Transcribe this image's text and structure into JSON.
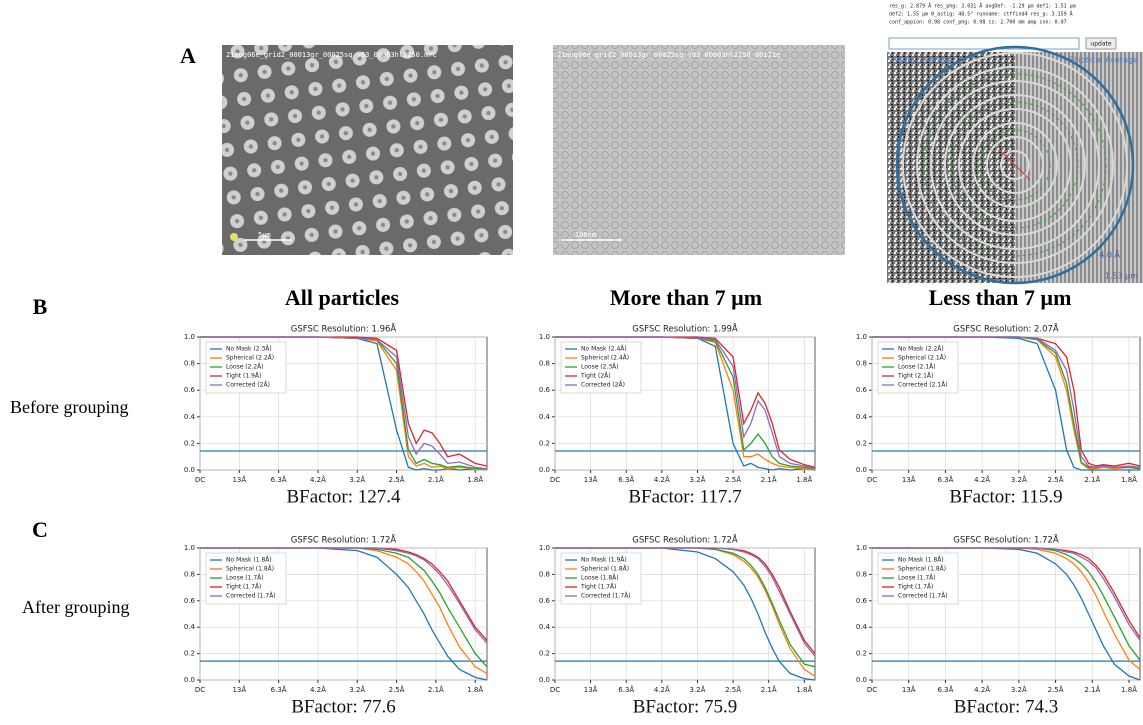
{
  "panel_labels": [
    "A",
    "B",
    "C"
  ],
  "images": [
    {
      "header": "21aug06e_grid2_00013gr_00025sq_v03_00003hl2250.mrc",
      "scale": "5µm"
    },
    {
      "header": "21aug06e_grid2_00013gr_00025sq_v03_00003hl2250_00121e",
      "scale": "100nm"
    },
    {
      "info": [
        "res_g: 2.879 Å  res_phg: 3.031 Å  avgDef: -1.29 µm  def1: 1.51 µm",
        "def2: 1.55 µm  θ_astig: 48.5°  runname: ctffind4  res_g: 3.159 Å",
        "conf_appion: 0.98  conf_phg: 0.98  cs: 2.700 mm  amp con: 0.07"
      ],
      "button": "update",
      "left_label": "Radial Average",
      "right_label": "Elliptical Average",
      "ring_label": "4.0 Å",
      "scale": "1.53 µm"
    }
  ],
  "column_titles": [
    "All particles",
    "More than 7 µm",
    "Less than 7 µm"
  ],
  "row_labels": [
    "Before grouping",
    "After grouping"
  ],
  "chart_data": [
    {
      "type": "line",
      "title": "GSFSC Resolution: 1.96Å",
      "caption": "BFactor: 127.4",
      "grid": true,
      "threshold": 0.143,
      "threshold_color": "#1f77b4",
      "xlim": [
        0,
        7.3
      ],
      "xticks": [
        {
          "value": 0,
          "label": "DC"
        },
        {
          "value": 1,
          "label": "13Å"
        },
        {
          "value": 2,
          "label": "6.3Å"
        },
        {
          "value": 3,
          "label": "4.2Å"
        },
        {
          "value": 4,
          "label": "3.2Å"
        },
        {
          "value": 5,
          "label": "2.5Å"
        },
        {
          "value": 6,
          "label": "2.1Å"
        },
        {
          "value": 7,
          "label": "1.8Å"
        }
      ],
      "ylim": [
        0,
        1
      ],
      "yticks": [
        {
          "value": 0,
          "label": "0.0"
        },
        0.2,
        0.4,
        0.6,
        0.8,
        {
          "value": 1,
          "label": "1.0"
        }
      ],
      "x": [
        0,
        3,
        4,
        4.5,
        5,
        5.3,
        5.5,
        5.7,
        5.9,
        6.1,
        6.3,
        6.6,
        7.0,
        7.3
      ],
      "series": [
        {
          "name": "No Mask (2.3Å)",
          "color": "#1f77b4",
          "values": [
            1,
            1,
            0.99,
            0.95,
            0.3,
            0.02,
            0,
            0.01,
            0,
            0,
            0.01,
            0,
            0.01,
            0
          ]
        },
        {
          "name": "Spherical (2.2Å)",
          "color": "#ff7f0e",
          "values": [
            1,
            1,
            0.99,
            0.97,
            0.75,
            0.1,
            0.03,
            0.05,
            0.02,
            0.03,
            0.01,
            0.02,
            0.01,
            0
          ]
        },
        {
          "name": "Loose (2.2Å)",
          "color": "#2ca02c",
          "values": [
            1,
            1,
            0.99,
            0.98,
            0.8,
            0.15,
            0.05,
            0.08,
            0.05,
            0.04,
            0.02,
            0.03,
            0.01,
            0.01
          ]
        },
        {
          "name": "Tight (1.9Å)",
          "color": "#d62728",
          "values": [
            1,
            1,
            1,
            0.99,
            0.9,
            0.35,
            0.2,
            0.3,
            0.28,
            0.2,
            0.1,
            0.12,
            0.05,
            0.03
          ]
        },
        {
          "name": "Corrected (2Å)",
          "color": "#9467bd",
          "values": [
            1,
            1,
            0.99,
            0.98,
            0.85,
            0.25,
            0.12,
            0.2,
            0.18,
            0.12,
            0.05,
            0.06,
            0.02,
            0.01
          ]
        }
      ]
    },
    {
      "type": "line",
      "title": "GSFSC Resolution: 1.99Å",
      "caption": "BFactor: 117.7",
      "grid": true,
      "threshold": 0.143,
      "threshold_color": "#1f77b4",
      "xlim": [
        0,
        7.3
      ],
      "xticks": [
        {
          "value": 0,
          "label": "DC"
        },
        {
          "value": 1,
          "label": "13Å"
        },
        {
          "value": 2,
          "label": "6.3Å"
        },
        {
          "value": 3,
          "label": "4.2Å"
        },
        {
          "value": 4,
          "label": "3.2Å"
        },
        {
          "value": 5,
          "label": "2.5Å"
        },
        {
          "value": 6,
          "label": "2.1Å"
        },
        {
          "value": 7,
          "label": "1.8Å"
        }
      ],
      "ylim": [
        0,
        1
      ],
      "yticks": [
        {
          "value": 0,
          "label": "0.0"
        },
        0.2,
        0.4,
        0.6,
        0.8,
        {
          "value": 1,
          "label": "1.0"
        }
      ],
      "x": [
        0,
        3,
        4,
        4.5,
        5,
        5.3,
        5.5,
        5.7,
        5.9,
        6.1,
        6.3,
        6.6,
        7.0,
        7.3
      ],
      "series": [
        {
          "name": "No Mask (2.4Å)",
          "color": "#1f77b4",
          "values": [
            1,
            1,
            0.99,
            0.93,
            0.2,
            0.03,
            0.05,
            0.02,
            0.01,
            0,
            0.01,
            0,
            0.01,
            0
          ]
        },
        {
          "name": "Spherical (2.4Å)",
          "color": "#ff7f0e",
          "values": [
            1,
            1,
            0.99,
            0.96,
            0.6,
            0.1,
            0.1,
            0.12,
            0.08,
            0.05,
            0.03,
            0.02,
            0.01,
            0
          ]
        },
        {
          "name": "Loose (2.3Å)",
          "color": "#2ca02c",
          "values": [
            1,
            1,
            0.99,
            0.97,
            0.7,
            0.15,
            0.2,
            0.27,
            0.2,
            0.1,
            0.05,
            0.03,
            0.02,
            0.01
          ]
        },
        {
          "name": "Tight (2Å)",
          "color": "#d62728",
          "values": [
            1,
            1,
            1,
            0.99,
            0.85,
            0.35,
            0.45,
            0.58,
            0.5,
            0.35,
            0.15,
            0.08,
            0.04,
            0.02
          ]
        },
        {
          "name": "Corrected (2Å)",
          "color": "#9467bd",
          "values": [
            1,
            1,
            0.99,
            0.98,
            0.78,
            0.25,
            0.35,
            0.52,
            0.45,
            0.28,
            0.1,
            0.05,
            0.03,
            0.01
          ]
        }
      ]
    },
    {
      "type": "line",
      "title": "GSFSC Resolution: 2.07Å",
      "caption": "BFactor: 115.9",
      "grid": true,
      "threshold": 0.143,
      "threshold_color": "#1f77b4",
      "xlim": [
        0,
        7.3
      ],
      "xticks": [
        {
          "value": 0,
          "label": "DC"
        },
        {
          "value": 1,
          "label": "13Å"
        },
        {
          "value": 2,
          "label": "6.3Å"
        },
        {
          "value": 3,
          "label": "4.2Å"
        },
        {
          "value": 4,
          "label": "3.2Å"
        },
        {
          "value": 5,
          "label": "2.5Å"
        },
        {
          "value": 6,
          "label": "2.1Å"
        },
        {
          "value": 7,
          "label": "1.8Å"
        }
      ],
      "ylim": [
        0,
        1
      ],
      "yticks": [
        {
          "value": 0,
          "label": "0.0"
        },
        0.2,
        0.4,
        0.6,
        0.8,
        {
          "value": 1,
          "label": "1.0"
        }
      ],
      "x": [
        0,
        3,
        4,
        4.5,
        5,
        5.3,
        5.5,
        5.7,
        5.9,
        6.1,
        6.3,
        6.6,
        7.0,
        7.3
      ],
      "series": [
        {
          "name": "No Mask (2.2Å)",
          "color": "#1f77b4",
          "values": [
            1,
            1,
            0.99,
            0.95,
            0.6,
            0.15,
            0.02,
            0,
            0,
            0,
            0,
            0,
            0,
            0
          ]
        },
        {
          "name": "Spherical (2.1Å)",
          "color": "#ff7f0e",
          "values": [
            1,
            1,
            1,
            0.98,
            0.85,
            0.6,
            0.3,
            0.05,
            0.01,
            0.01,
            0.02,
            0.01,
            0.02,
            0.01
          ]
        },
        {
          "name": "Loose (2.1Å)",
          "color": "#2ca02c",
          "values": [
            1,
            1,
            1,
            0.98,
            0.88,
            0.65,
            0.35,
            0.06,
            0.02,
            0.02,
            0.03,
            0.02,
            0.02,
            0.01
          ]
        },
        {
          "name": "Tight (2.1Å)",
          "color": "#d62728",
          "values": [
            1,
            1,
            1,
            0.99,
            0.95,
            0.85,
            0.6,
            0.15,
            0.05,
            0.03,
            0.04,
            0.03,
            0.05,
            0.03
          ]
        },
        {
          "name": "Corrected (2.1Å)",
          "color": "#9467bd",
          "values": [
            1,
            1,
            1,
            0.99,
            0.9,
            0.75,
            0.45,
            0.1,
            0.03,
            0.02,
            0.03,
            0.02,
            0.03,
            0.02
          ]
        }
      ]
    },
    {
      "type": "line",
      "title": "GSFSC Resolution: 1.72Å",
      "caption": "BFactor: 77.6",
      "grid": true,
      "threshold": 0.143,
      "threshold_color": "#1f77b4",
      "xlim": [
        0,
        7.3
      ],
      "xticks": [
        {
          "value": 0,
          "label": "DC"
        },
        {
          "value": 1,
          "label": "13Å"
        },
        {
          "value": 2,
          "label": "6.3Å"
        },
        {
          "value": 3,
          "label": "4.2Å"
        },
        {
          "value": 4,
          "label": "3.2Å"
        },
        {
          "value": 5,
          "label": "2.5Å"
        },
        {
          "value": 6,
          "label": "2.1Å"
        },
        {
          "value": 7,
          "label": "1.8Å"
        }
      ],
      "ylim": [
        0,
        1
      ],
      "yticks": [
        {
          "value": 0,
          "label": "0.0"
        },
        0.2,
        0.4,
        0.6,
        0.8,
        {
          "value": 1,
          "label": "1.0"
        }
      ],
      "x": [
        0,
        3,
        4,
        4.5,
        5,
        5.3,
        5.5,
        5.7,
        5.9,
        6.1,
        6.3,
        6.6,
        7.0,
        7.3
      ],
      "series": [
        {
          "name": "No Mask (1.8Å)",
          "color": "#1f77b4",
          "values": [
            1,
            1,
            0.98,
            0.93,
            0.8,
            0.7,
            0.6,
            0.5,
            0.38,
            0.28,
            0.18,
            0.08,
            0.02,
            0
          ]
        },
        {
          "name": "Spherical (1.8Å)",
          "color": "#ff7f0e",
          "values": [
            1,
            1,
            1,
            0.98,
            0.93,
            0.88,
            0.82,
            0.75,
            0.65,
            0.55,
            0.42,
            0.25,
            0.1,
            0.05
          ]
        },
        {
          "name": "Loose (1.7Å)",
          "color": "#2ca02c",
          "values": [
            1,
            1,
            1,
            0.99,
            0.96,
            0.93,
            0.88,
            0.83,
            0.75,
            0.66,
            0.55,
            0.4,
            0.2,
            0.1
          ]
        },
        {
          "name": "Tight (1.7Å)",
          "color": "#d62728",
          "values": [
            1,
            1,
            1,
            1,
            0.99,
            0.97,
            0.95,
            0.92,
            0.88,
            0.82,
            0.75,
            0.6,
            0.4,
            0.3
          ]
        },
        {
          "name": "Corrected (1.7Å)",
          "color": "#9467bd",
          "values": [
            1,
            1,
            1,
            1,
            0.98,
            0.96,
            0.94,
            0.91,
            0.86,
            0.8,
            0.72,
            0.58,
            0.38,
            0.28
          ]
        }
      ]
    },
    {
      "type": "line",
      "title": "GSFSC Resolution: 1.72Å",
      "caption": "BFactor: 75.9",
      "grid": true,
      "threshold": 0.143,
      "threshold_color": "#1f77b4",
      "xlim": [
        0,
        7.3
      ],
      "xticks": [
        {
          "value": 0,
          "label": "DC"
        },
        {
          "value": 1,
          "label": "13Å"
        },
        {
          "value": 2,
          "label": "6.3Å"
        },
        {
          "value": 3,
          "label": "4.2Å"
        },
        {
          "value": 4,
          "label": "3.2Å"
        },
        {
          "value": 5,
          "label": "2.5Å"
        },
        {
          "value": 6,
          "label": "2.1Å"
        },
        {
          "value": 7,
          "label": "1.8Å"
        }
      ],
      "ylim": [
        0,
        1
      ],
      "yticks": [
        {
          "value": 0,
          "label": "0.0"
        },
        0.2,
        0.4,
        0.6,
        0.8,
        {
          "value": 1,
          "label": "1.0"
        }
      ],
      "x": [
        0,
        3,
        4,
        4.5,
        5,
        5.3,
        5.5,
        5.7,
        5.9,
        6.1,
        6.3,
        6.6,
        7.0,
        7.3
      ],
      "series": [
        {
          "name": "No Mask (1.9Å)",
          "color": "#1f77b4",
          "values": [
            1,
            1,
            0.97,
            0.92,
            0.82,
            0.72,
            0.62,
            0.5,
            0.36,
            0.24,
            0.14,
            0.05,
            0.01,
            0
          ]
        },
        {
          "name": "Spherical (1.8Å)",
          "color": "#ff7f0e",
          "values": [
            1,
            1,
            1,
            0.99,
            0.95,
            0.9,
            0.85,
            0.78,
            0.68,
            0.56,
            0.42,
            0.24,
            0.08,
            0.03
          ]
        },
        {
          "name": "Loose (1.8Å)",
          "color": "#2ca02c",
          "values": [
            1,
            1,
            1,
            0.99,
            0.96,
            0.92,
            0.87,
            0.8,
            0.7,
            0.58,
            0.45,
            0.27,
            0.12,
            0.1
          ]
        },
        {
          "name": "Tight (1.7Å)",
          "color": "#d62728",
          "values": [
            1,
            1,
            1,
            1,
            0.99,
            0.98,
            0.96,
            0.93,
            0.88,
            0.8,
            0.7,
            0.52,
            0.3,
            0.2
          ]
        },
        {
          "name": "Corrected (1.7Å)",
          "color": "#9467bd",
          "values": [
            1,
            1,
            1,
            1,
            0.99,
            0.97,
            0.95,
            0.92,
            0.86,
            0.78,
            0.67,
            0.5,
            0.28,
            0.18
          ]
        }
      ]
    },
    {
      "type": "line",
      "title": "GSFSC Resolution: 1.72Å",
      "caption": "BFactor: 74.3",
      "grid": true,
      "threshold": 0.143,
      "threshold_color": "#1f77b4",
      "xlim": [
        0,
        7.3
      ],
      "xticks": [
        {
          "value": 0,
          "label": "DC"
        },
        {
          "value": 1,
          "label": "13Å"
        },
        {
          "value": 2,
          "label": "6.3Å"
        },
        {
          "value": 3,
          "label": "4.2Å"
        },
        {
          "value": 4,
          "label": "3.2Å"
        },
        {
          "value": 5,
          "label": "2.5Å"
        },
        {
          "value": 6,
          "label": "2.1Å"
        },
        {
          "value": 7,
          "label": "1.8Å"
        }
      ],
      "ylim": [
        0,
        1
      ],
      "yticks": [
        {
          "value": 0,
          "label": "0.0"
        },
        0.2,
        0.4,
        0.6,
        0.8,
        {
          "value": 1,
          "label": "1.0"
        }
      ],
      "x": [
        0,
        3,
        4,
        4.5,
        5,
        5.3,
        5.5,
        5.7,
        5.9,
        6.1,
        6.3,
        6.6,
        7.0,
        7.3
      ],
      "series": [
        {
          "name": "No Mask (1.8Å)",
          "color": "#1f77b4",
          "values": [
            1,
            1,
            0.99,
            0.96,
            0.88,
            0.8,
            0.72,
            0.62,
            0.5,
            0.38,
            0.26,
            0.12,
            0.03,
            0
          ]
        },
        {
          "name": "Spherical (1.8Å)",
          "color": "#ff7f0e",
          "values": [
            1,
            1,
            1,
            0.99,
            0.96,
            0.92,
            0.88,
            0.82,
            0.74,
            0.64,
            0.52,
            0.35,
            0.15,
            0.08
          ]
        },
        {
          "name": "Loose (1.7Å)",
          "color": "#2ca02c",
          "values": [
            1,
            1,
            1,
            1,
            0.98,
            0.95,
            0.92,
            0.88,
            0.82,
            0.74,
            0.64,
            0.48,
            0.26,
            0.15
          ]
        },
        {
          "name": "Tight (1.7Å)",
          "color": "#d62728",
          "values": [
            1,
            1,
            1,
            1,
            0.99,
            0.98,
            0.97,
            0.95,
            0.92,
            0.87,
            0.8,
            0.66,
            0.45,
            0.32
          ]
        },
        {
          "name": "Corrected (1.7Å)",
          "color": "#9467bd",
          "values": [
            1,
            1,
            1,
            1,
            0.99,
            0.97,
            0.96,
            0.93,
            0.9,
            0.85,
            0.77,
            0.63,
            0.42,
            0.3
          ]
        }
      ]
    }
  ]
}
